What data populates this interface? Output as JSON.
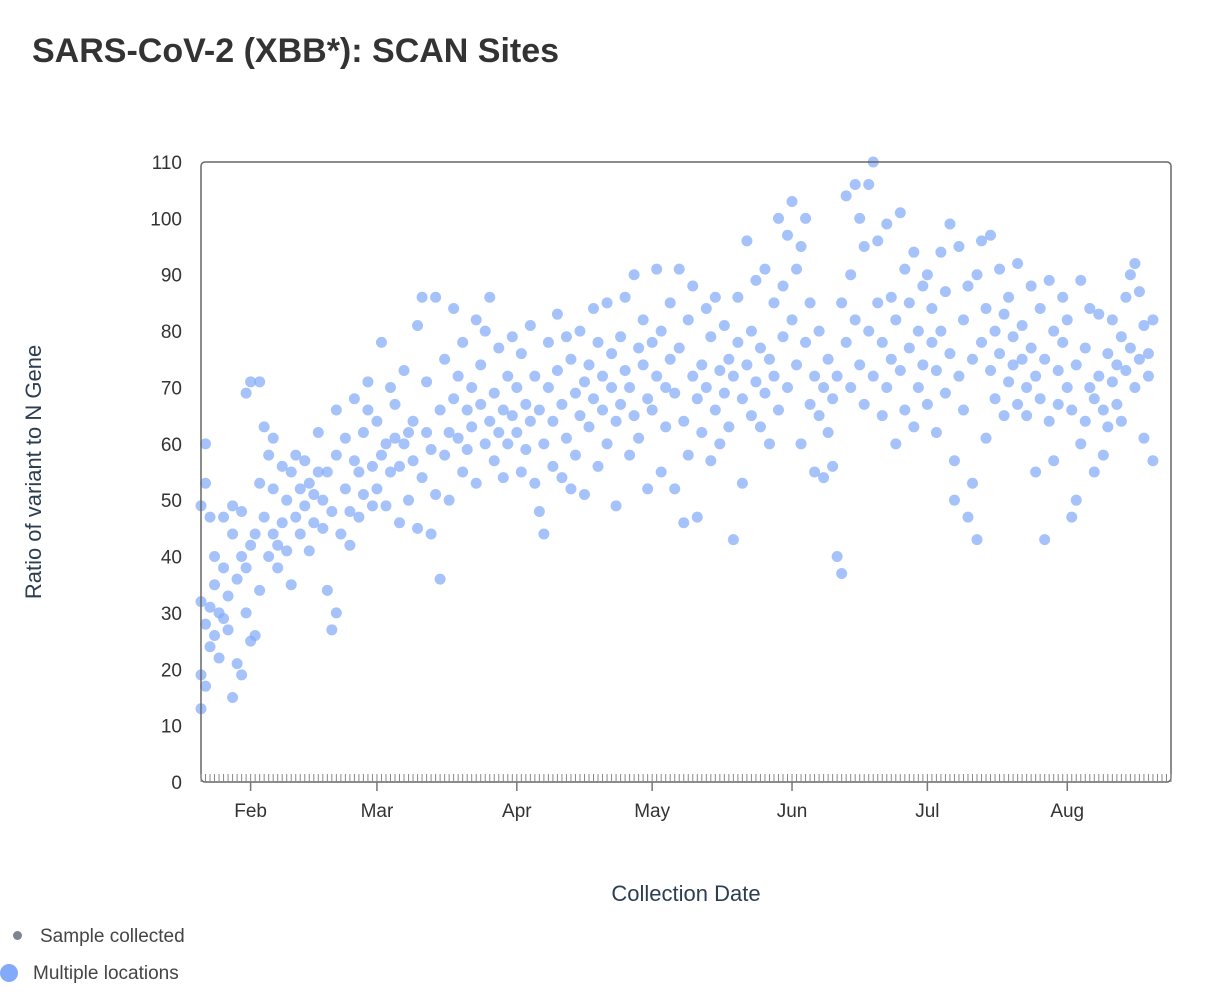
{
  "title": "SARS-CoV-2 (XBB*): SCAN Sites",
  "legend": {
    "items": [
      {
        "label": "Sample collected",
        "color": "#7d8590"
      },
      {
        "label": "Multiple locations",
        "color": "#82aaf8"
      }
    ]
  },
  "chart_data": {
    "type": "scatter",
    "title": "SARS-CoV-2 (XBB*): SCAN Sites",
    "xlabel": "Collection Date",
    "ylabel": "Ratio of variant to N Gene",
    "x_units": "day of year 2023 (Jan 1 = 0)",
    "xlim": [
      20,
      235
    ],
    "ylim": [
      0,
      110
    ],
    "yticks": [
      0,
      10,
      20,
      30,
      40,
      50,
      60,
      70,
      80,
      90,
      100,
      110
    ],
    "xticks": [
      {
        "label": "Feb",
        "x": 31
      },
      {
        "label": "Mar",
        "x": 59
      },
      {
        "label": "Apr",
        "x": 90
      },
      {
        "label": "May",
        "x": 120
      },
      {
        "label": "Jun",
        "x": 151
      },
      {
        "label": "Jul",
        "x": 181
      },
      {
        "label": "Aug",
        "x": 212
      }
    ],
    "grid": false,
    "legend_position": "bottom-left",
    "marker_color": "#82aaf8",
    "points": [
      [
        20,
        13
      ],
      [
        20,
        32
      ],
      [
        20,
        19
      ],
      [
        20,
        49
      ],
      [
        21,
        60
      ],
      [
        21,
        17
      ],
      [
        21,
        53
      ],
      [
        21,
        28
      ],
      [
        22,
        24
      ],
      [
        22,
        31
      ],
      [
        22,
        47
      ],
      [
        23,
        40
      ],
      [
        23,
        35
      ],
      [
        23,
        26
      ],
      [
        24,
        22
      ],
      [
        24,
        30
      ],
      [
        25,
        38
      ],
      [
        25,
        29
      ],
      [
        25,
        47
      ],
      [
        26,
        27
      ],
      [
        26,
        33
      ],
      [
        27,
        44
      ],
      [
        27,
        15
      ],
      [
        27,
        49
      ],
      [
        28,
        36
      ],
      [
        28,
        21
      ],
      [
        29,
        19
      ],
      [
        29,
        40
      ],
      [
        29,
        48
      ],
      [
        30,
        30
      ],
      [
        30,
        38
      ],
      [
        30,
        69
      ],
      [
        31,
        71
      ],
      [
        31,
        25
      ],
      [
        31,
        42
      ],
      [
        32,
        44
      ],
      [
        32,
        26
      ],
      [
        33,
        71
      ],
      [
        33,
        34
      ],
      [
        33,
        53
      ],
      [
        34,
        63
      ],
      [
        34,
        47
      ],
      [
        35,
        40
      ],
      [
        35,
        58
      ],
      [
        36,
        44
      ],
      [
        36,
        61
      ],
      [
        36,
        52
      ],
      [
        37,
        42
      ],
      [
        37,
        38
      ],
      [
        38,
        56
      ],
      [
        38,
        46
      ],
      [
        39,
        41
      ],
      [
        39,
        50
      ],
      [
        40,
        35
      ],
      [
        40,
        55
      ],
      [
        41,
        47
      ],
      [
        41,
        58
      ],
      [
        42,
        44
      ],
      [
        42,
        52
      ],
      [
        43,
        57
      ],
      [
        43,
        49
      ],
      [
        44,
        41
      ],
      [
        44,
        53
      ],
      [
        45,
        51
      ],
      [
        45,
        46
      ],
      [
        46,
        62
      ],
      [
        46,
        55
      ],
      [
        47,
        45
      ],
      [
        47,
        50
      ],
      [
        48,
        34
      ],
      [
        48,
        55
      ],
      [
        49,
        27
      ],
      [
        49,
        48
      ],
      [
        50,
        66
      ],
      [
        50,
        30
      ],
      [
        50,
        58
      ],
      [
        51,
        44
      ],
      [
        52,
        61
      ],
      [
        52,
        52
      ],
      [
        53,
        42
      ],
      [
        53,
        48
      ],
      [
        54,
        68
      ],
      [
        54,
        57
      ],
      [
        55,
        55
      ],
      [
        55,
        47
      ],
      [
        56,
        62
      ],
      [
        56,
        51
      ],
      [
        57,
        71
      ],
      [
        57,
        66
      ],
      [
        58,
        56
      ],
      [
        58,
        49
      ],
      [
        59,
        64
      ],
      [
        59,
        52
      ],
      [
        60,
        78
      ],
      [
        60,
        58
      ],
      [
        61,
        60
      ],
      [
        61,
        49
      ],
      [
        62,
        70
      ],
      [
        62,
        55
      ],
      [
        63,
        61
      ],
      [
        63,
        67
      ],
      [
        64,
        46
      ],
      [
        64,
        56
      ],
      [
        65,
        73
      ],
      [
        65,
        60
      ],
      [
        66,
        50
      ],
      [
        66,
        62
      ],
      [
        67,
        64
      ],
      [
        67,
        57
      ],
      [
        68,
        81
      ],
      [
        68,
        45
      ],
      [
        69,
        86
      ],
      [
        69,
        54
      ],
      [
        70,
        62
      ],
      [
        70,
        71
      ],
      [
        71,
        44
      ],
      [
        71,
        59
      ],
      [
        72,
        86
      ],
      [
        72,
        51
      ],
      [
        73,
        36
      ],
      [
        73,
        66
      ],
      [
        74,
        75
      ],
      [
        74,
        58
      ],
      [
        75,
        62
      ],
      [
        75,
        50
      ],
      [
        76,
        84
      ],
      [
        76,
        68
      ],
      [
        77,
        61
      ],
      [
        77,
        72
      ],
      [
        78,
        55
      ],
      [
        78,
        78
      ],
      [
        79,
        66
      ],
      [
        79,
        59
      ],
      [
        80,
        70
      ],
      [
        80,
        63
      ],
      [
        81,
        82
      ],
      [
        81,
        53
      ],
      [
        82,
        74
      ],
      [
        82,
        67
      ],
      [
        83,
        60
      ],
      [
        83,
        80
      ],
      [
        84,
        86
      ],
      [
        84,
        64
      ],
      [
        85,
        57
      ],
      [
        85,
        69
      ],
      [
        86,
        77
      ],
      [
        86,
        62
      ],
      [
        87,
        66
      ],
      [
        87,
        54
      ],
      [
        88,
        72
      ],
      [
        88,
        60
      ],
      [
        89,
        79
      ],
      [
        89,
        65
      ],
      [
        90,
        62
      ],
      [
        90,
        70
      ],
      [
        91,
        55
      ],
      [
        91,
        76
      ],
      [
        92,
        67
      ],
      [
        92,
        59
      ],
      [
        93,
        81
      ],
      [
        93,
        64
      ],
      [
        94,
        53
      ],
      [
        94,
        72
      ],
      [
        95,
        66
      ],
      [
        95,
        48
      ],
      [
        96,
        44
      ],
      [
        96,
        60
      ],
      [
        97,
        70
      ],
      [
        97,
        78
      ],
      [
        98,
        56
      ],
      [
        98,
        64
      ],
      [
        99,
        83
      ],
      [
        99,
        73
      ],
      [
        100,
        54
      ],
      [
        100,
        67
      ],
      [
        101,
        61
      ],
      [
        101,
        79
      ],
      [
        102,
        75
      ],
      [
        102,
        52
      ],
      [
        103,
        69
      ],
      [
        103,
        58
      ],
      [
        104,
        80
      ],
      [
        104,
        65
      ],
      [
        105,
        71
      ],
      [
        105,
        51
      ],
      [
        106,
        74
      ],
      [
        106,
        63
      ],
      [
        107,
        84
      ],
      [
        107,
        68
      ],
      [
        108,
        56
      ],
      [
        108,
        78
      ],
      [
        109,
        66
      ],
      [
        109,
        72
      ],
      [
        110,
        85
      ],
      [
        110,
        60
      ],
      [
        111,
        70
      ],
      [
        111,
        76
      ],
      [
        112,
        49
      ],
      [
        112,
        64
      ],
      [
        113,
        79
      ],
      [
        113,
        67
      ],
      [
        114,
        86
      ],
      [
        114,
        73
      ],
      [
        115,
        58
      ],
      [
        115,
        70
      ],
      [
        116,
        90
      ],
      [
        116,
        65
      ],
      [
        117,
        77
      ],
      [
        117,
        61
      ],
      [
        118,
        74
      ],
      [
        118,
        82
      ],
      [
        119,
        52
      ],
      [
        119,
        68
      ],
      [
        120,
        78
      ],
      [
        120,
        66
      ],
      [
        121,
        91
      ],
      [
        121,
        72
      ],
      [
        122,
        55
      ],
      [
        122,
        80
      ],
      [
        123,
        63
      ],
      [
        123,
        70
      ],
      [
        124,
        85
      ],
      [
        124,
        75
      ],
      [
        125,
        52
      ],
      [
        125,
        69
      ],
      [
        126,
        91
      ],
      [
        126,
        77
      ],
      [
        127,
        46
      ],
      [
        127,
        64
      ],
      [
        128,
        58
      ],
      [
        128,
        82
      ],
      [
        129,
        72
      ],
      [
        129,
        88
      ],
      [
        130,
        47
      ],
      [
        130,
        68
      ],
      [
        131,
        74
      ],
      [
        131,
        62
      ],
      [
        132,
        84
      ],
      [
        132,
        70
      ],
      [
        133,
        57
      ],
      [
        133,
        79
      ],
      [
        134,
        86
      ],
      [
        134,
        66
      ],
      [
        135,
        73
      ],
      [
        135,
        60
      ],
      [
        136,
        81
      ],
      [
        136,
        69
      ],
      [
        137,
        75
      ],
      [
        137,
        63
      ],
      [
        138,
        43
      ],
      [
        138,
        72
      ],
      [
        139,
        86
      ],
      [
        139,
        78
      ],
      [
        140,
        53
      ],
      [
        140,
        68
      ],
      [
        141,
        96
      ],
      [
        141,
        74
      ],
      [
        142,
        80
      ],
      [
        142,
        65
      ],
      [
        143,
        89
      ],
      [
        143,
        71
      ],
      [
        144,
        63
      ],
      [
        144,
        77
      ],
      [
        145,
        91
      ],
      [
        145,
        69
      ],
      [
        146,
        60
      ],
      [
        146,
        75
      ],
      [
        147,
        85
      ],
      [
        147,
        72
      ],
      [
        148,
        100
      ],
      [
        148,
        66
      ],
      [
        149,
        88
      ],
      [
        149,
        79
      ],
      [
        150,
        97
      ],
      [
        150,
        70
      ],
      [
        151,
        103
      ],
      [
        151,
        82
      ],
      [
        152,
        91
      ],
      [
        152,
        74
      ],
      [
        153,
        95
      ],
      [
        153,
        60
      ],
      [
        154,
        100
      ],
      [
        154,
        78
      ],
      [
        155,
        67
      ],
      [
        155,
        85
      ],
      [
        156,
        55
      ],
      [
        156,
        72
      ],
      [
        157,
        65
      ],
      [
        157,
        80
      ],
      [
        158,
        54
      ],
      [
        158,
        70
      ],
      [
        159,
        62
      ],
      [
        159,
        75
      ],
      [
        160,
        56
      ],
      [
        160,
        68
      ],
      [
        161,
        40
      ],
      [
        161,
        72
      ],
      [
        162,
        37
      ],
      [
        162,
        85
      ],
      [
        163,
        104
      ],
      [
        163,
        78
      ],
      [
        164,
        90
      ],
      [
        164,
        70
      ],
      [
        165,
        106
      ],
      [
        165,
        82
      ],
      [
        166,
        100
      ],
      [
        166,
        74
      ],
      [
        167,
        95
      ],
      [
        167,
        67
      ],
      [
        168,
        106
      ],
      [
        168,
        80
      ],
      [
        169,
        110
      ],
      [
        169,
        72
      ],
      [
        170,
        96
      ],
      [
        170,
        85
      ],
      [
        171,
        65
      ],
      [
        171,
        78
      ],
      [
        172,
        99
      ],
      [
        172,
        70
      ],
      [
        173,
        86
      ],
      [
        173,
        75
      ],
      [
        174,
        60
      ],
      [
        174,
        82
      ],
      [
        175,
        101
      ],
      [
        175,
        73
      ],
      [
        176,
        91
      ],
      [
        176,
        66
      ],
      [
        177,
        85
      ],
      [
        177,
        77
      ],
      [
        178,
        94
      ],
      [
        178,
        63
      ],
      [
        179,
        80
      ],
      [
        179,
        70
      ],
      [
        180,
        88
      ],
      [
        180,
        74
      ],
      [
        181,
        90
      ],
      [
        181,
        67
      ],
      [
        182,
        78
      ],
      [
        182,
        84
      ],
      [
        183,
        62
      ],
      [
        183,
        73
      ],
      [
        184,
        94
      ],
      [
        184,
        80
      ],
      [
        185,
        69
      ],
      [
        185,
        87
      ],
      [
        186,
        99
      ],
      [
        186,
        76
      ],
      [
        187,
        50
      ],
      [
        187,
        57
      ],
      [
        188,
        95
      ],
      [
        188,
        72
      ],
      [
        189,
        82
      ],
      [
        189,
        66
      ],
      [
        190,
        47
      ],
      [
        190,
        88
      ],
      [
        191,
        53
      ],
      [
        191,
        75
      ],
      [
        192,
        43
      ],
      [
        192,
        90
      ],
      [
        193,
        96
      ],
      [
        193,
        78
      ],
      [
        194,
        61
      ],
      [
        194,
        84
      ],
      [
        195,
        97
      ],
      [
        195,
        73
      ],
      [
        196,
        80
      ],
      [
        196,
        68
      ],
      [
        197,
        91
      ],
      [
        197,
        76
      ],
      [
        198,
        65
      ],
      [
        198,
        83
      ],
      [
        199,
        86
      ],
      [
        199,
        71
      ],
      [
        200,
        74
      ],
      [
        200,
        79
      ],
      [
        201,
        92
      ],
      [
        201,
        67
      ],
      [
        202,
        81
      ],
      [
        202,
        75
      ],
      [
        203,
        65
      ],
      [
        203,
        70
      ],
      [
        204,
        88
      ],
      [
        204,
        77
      ],
      [
        205,
        55
      ],
      [
        205,
        72
      ],
      [
        206,
        84
      ],
      [
        206,
        68
      ],
      [
        207,
        43
      ],
      [
        207,
        75
      ],
      [
        208,
        89
      ],
      [
        208,
        64
      ],
      [
        209,
        57
      ],
      [
        209,
        80
      ],
      [
        210,
        73
      ],
      [
        210,
        67
      ],
      [
        211,
        86
      ],
      [
        211,
        78
      ],
      [
        212,
        70
      ],
      [
        212,
        82
      ],
      [
        213,
        47
      ],
      [
        213,
        66
      ],
      [
        214,
        50
      ],
      [
        214,
        74
      ],
      [
        215,
        89
      ],
      [
        215,
        60
      ],
      [
        216,
        64
      ],
      [
        216,
        77
      ],
      [
        217,
        84
      ],
      [
        217,
        70
      ],
      [
        218,
        55
      ],
      [
        218,
        68
      ],
      [
        219,
        83
      ],
      [
        219,
        72
      ],
      [
        220,
        58
      ],
      [
        220,
        66
      ],
      [
        221,
        76
      ],
      [
        221,
        63
      ],
      [
        222,
        82
      ],
      [
        222,
        71
      ],
      [
        223,
        74
      ],
      [
        223,
        67
      ],
      [
        224,
        79
      ],
      [
        224,
        64
      ],
      [
        225,
        86
      ],
      [
        225,
        73
      ],
      [
        226,
        90
      ],
      [
        226,
        77
      ],
      [
        227,
        92
      ],
      [
        227,
        70
      ],
      [
        228,
        87
      ],
      [
        228,
        75
      ],
      [
        229,
        81
      ],
      [
        229,
        61
      ],
      [
        230,
        76
      ],
      [
        230,
        72
      ],
      [
        231,
        57
      ],
      [
        231,
        82
      ]
    ]
  }
}
